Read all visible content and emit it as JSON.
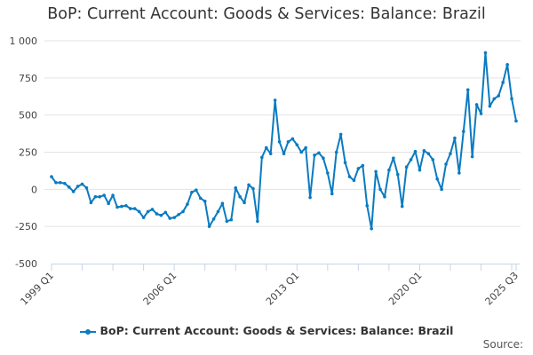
{
  "chart_data": {
    "type": "line",
    "title": "BoP: Current Account: Goods & Services: Balance: Brazil",
    "xlabel": "",
    "ylabel": "",
    "start": "1999 Q1",
    "end": "2025 Q3",
    "frequency": "quarterly",
    "x_tick_labels": [
      "1999 Q1",
      "2006 Q1",
      "2013 Q1",
      "2020 Q1",
      "2025 Q3"
    ],
    "y_ticks": [
      -500,
      -250,
      0,
      250,
      500,
      750,
      1000
    ],
    "y_tick_labels": [
      "-500",
      "-250",
      "0",
      "250",
      "500",
      "750",
      "1 000"
    ],
    "ylim": [
      -500,
      1000
    ],
    "grid": true,
    "legend_position": "bottom",
    "series": [
      {
        "name": "BoP: Current Account: Goods & Services: Balance: Brazil",
        "color": "#0a7bc1",
        "values": [
          85,
          45,
          45,
          40,
          15,
          -15,
          20,
          35,
          10,
          -90,
          -50,
          -50,
          -40,
          -95,
          -40,
          -120,
          -115,
          -110,
          -130,
          -130,
          -150,
          -190,
          -150,
          -135,
          -165,
          -175,
          -155,
          -195,
          -190,
          -170,
          -150,
          -100,
          -20,
          -5,
          -60,
          -80,
          -250,
          -200,
          -150,
          -95,
          -215,
          -205,
          10,
          -50,
          -90,
          30,
          5,
          -215,
          215,
          280,
          240,
          600,
          320,
          240,
          320,
          340,
          300,
          250,
          280,
          -55,
          230,
          245,
          210,
          110,
          -30,
          250,
          370,
          180,
          85,
          60,
          140,
          160,
          -110,
          -265,
          120,
          0,
          -50,
          130,
          210,
          100,
          -115,
          150,
          200,
          255,
          130,
          260,
          240,
          200,
          70,
          0,
          170,
          240,
          345,
          110,
          390,
          670,
          220,
          570,
          510,
          920,
          560,
          610,
          630,
          720,
          840,
          610,
          460
        ]
      }
    ]
  },
  "source_label": "Source:"
}
